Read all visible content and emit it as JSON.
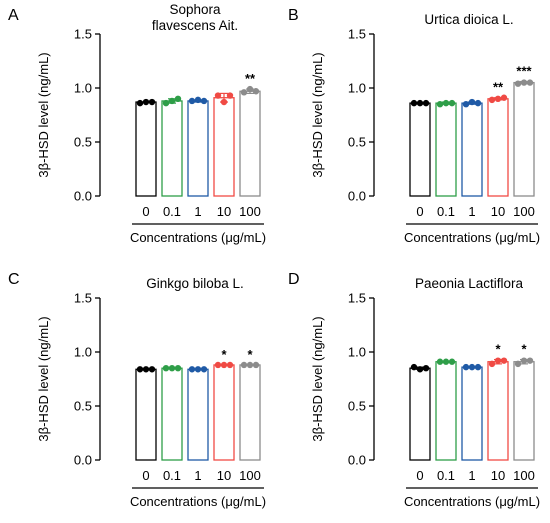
{
  "chart_data": [
    {
      "type": "bar",
      "panel_label": "A",
      "title_lines": [
        "Sophora",
        "flavescens Ait."
      ],
      "ylabel": "3β-HSD level (ng/mL)",
      "xlabel": "Concentrations (μg/mL)",
      "categories": [
        "0",
        "0.1",
        "1",
        "10",
        "100"
      ],
      "values": [
        0.87,
        0.88,
        0.88,
        0.91,
        0.97
      ],
      "points": [
        [
          0.86,
          0.87,
          0.87
        ],
        [
          0.86,
          0.88,
          0.9
        ],
        [
          0.88,
          0.89,
          0.88
        ],
        [
          0.93,
          0.87,
          0.93
        ],
        [
          0.96,
          0.99,
          0.97
        ]
      ],
      "errors": [
        0.0,
        0.02,
        0.01,
        0.04,
        0.02
      ],
      "significance": [
        "",
        "",
        "",
        "",
        "**"
      ],
      "colors": [
        "#000000",
        "#2e9e48",
        "#1f5aa6",
        "#f04a44",
        "#8c8c8c"
      ],
      "ylim": [
        0.0,
        1.5
      ],
      "yticks": [
        "0.0",
        "0.5",
        "1.0",
        "1.5"
      ]
    },
    {
      "type": "bar",
      "panel_label": "B",
      "title_lines": [
        "Urtica dioica L."
      ],
      "ylabel": "3β-HSD level (ng/mL)",
      "xlabel": "Concentrations (μg/mL)",
      "categories": [
        "0",
        "0.1",
        "1",
        "10",
        "100"
      ],
      "values": [
        0.86,
        0.86,
        0.86,
        0.9,
        1.05
      ],
      "points": [
        [
          0.86,
          0.86,
          0.86
        ],
        [
          0.85,
          0.86,
          0.86
        ],
        [
          0.85,
          0.87,
          0.86
        ],
        [
          0.89,
          0.9,
          0.91
        ],
        [
          1.04,
          1.05,
          1.05
        ]
      ],
      "errors": [
        0.0,
        0.01,
        0.01,
        0.01,
        0.01
      ],
      "significance": [
        "",
        "",
        "",
        "**",
        "***"
      ],
      "colors": [
        "#000000",
        "#2e9e48",
        "#1f5aa6",
        "#f04a44",
        "#8c8c8c"
      ],
      "ylim": [
        0.0,
        1.5
      ],
      "yticks": [
        "0.0",
        "0.5",
        "1.0",
        "1.5"
      ]
    },
    {
      "type": "bar",
      "panel_label": "C",
      "title_lines": [
        "Ginkgo biloba L."
      ],
      "ylabel": "3β-HSD level (ng/mL)",
      "xlabel": "Concentrations (μg/mL)",
      "categories": [
        "0",
        "0.1",
        "1",
        "10",
        "100"
      ],
      "values": [
        0.84,
        0.85,
        0.84,
        0.88,
        0.88
      ],
      "points": [
        [
          0.84,
          0.84,
          0.84
        ],
        [
          0.85,
          0.85,
          0.85
        ],
        [
          0.84,
          0.84,
          0.84
        ],
        [
          0.88,
          0.88,
          0.88
        ],
        [
          0.88,
          0.88,
          0.88
        ]
      ],
      "errors": [
        0.0,
        0.0,
        0.0,
        0.0,
        0.0
      ],
      "significance": [
        "",
        "",
        "",
        "*",
        "*"
      ],
      "colors": [
        "#000000",
        "#2e9e48",
        "#1f5aa6",
        "#f04a44",
        "#8c8c8c"
      ],
      "ylim": [
        0.0,
        1.5
      ],
      "yticks": [
        "0.0",
        "0.5",
        "1.0",
        "1.5"
      ]
    },
    {
      "type": "bar",
      "panel_label": "D",
      "title_lines": [
        "Paeonia Lactiflora"
      ],
      "ylabel": "3β-HSD level (ng/mL)",
      "xlabel": "Concentrations (μg/mL)",
      "categories": [
        "0",
        "0.1",
        "1",
        "10",
        "100"
      ],
      "values": [
        0.85,
        0.91,
        0.86,
        0.91,
        0.91
      ],
      "points": [
        [
          0.86,
          0.84,
          0.85
        ],
        [
          0.91,
          0.91,
          0.91
        ],
        [
          0.86,
          0.86,
          0.86
        ],
        [
          0.89,
          0.92,
          0.92
        ],
        [
          0.89,
          0.92,
          0.92
        ]
      ],
      "errors": [
        0.01,
        0.0,
        0.0,
        0.02,
        0.02
      ],
      "significance": [
        "",
        "",
        "",
        "*",
        "*"
      ],
      "colors": [
        "#000000",
        "#2e9e48",
        "#1f5aa6",
        "#f04a44",
        "#8c8c8c"
      ],
      "ylim": [
        0.0,
        1.5
      ],
      "yticks": [
        "0.0",
        "0.5",
        "1.0",
        "1.5"
      ]
    }
  ]
}
